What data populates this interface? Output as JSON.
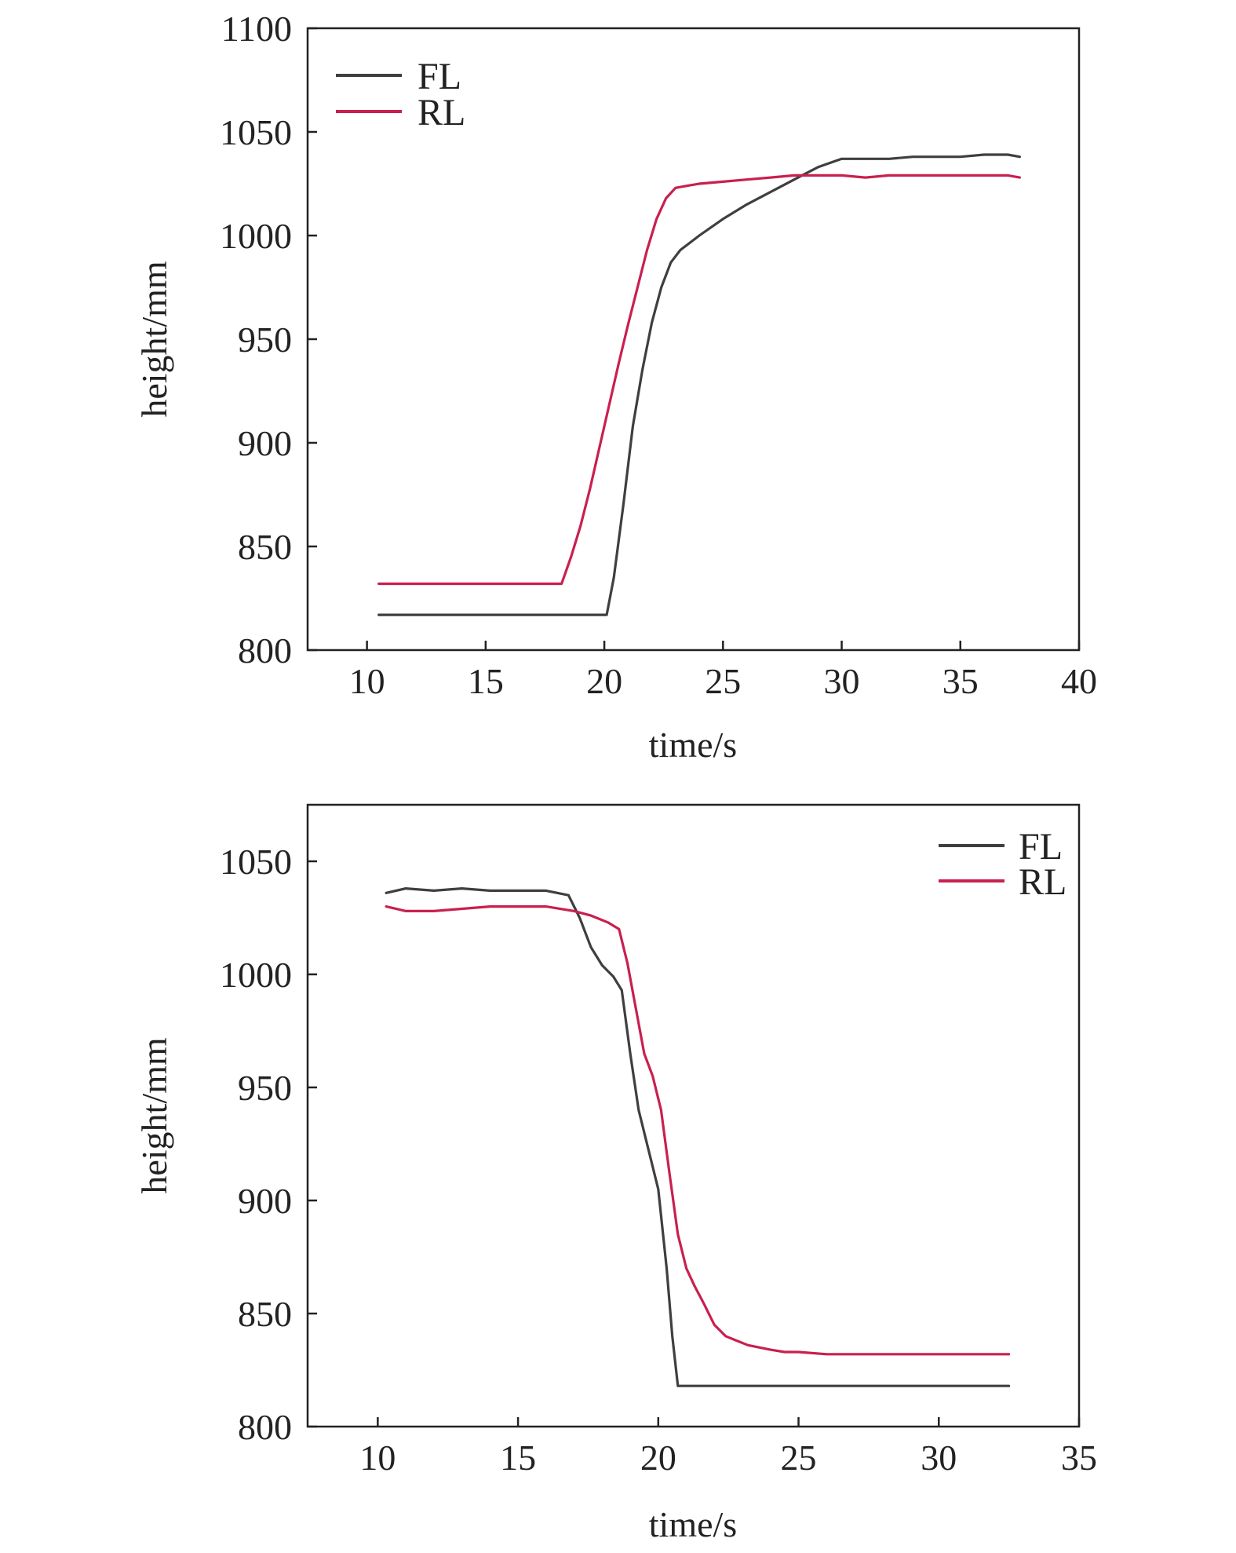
{
  "chart_data": [
    {
      "type": "line",
      "xlabel": "time/s",
      "ylabel": "height/mm",
      "xlim": [
        7.5,
        40
      ],
      "ylim": [
        800,
        1100
      ],
      "xticks": [
        10,
        15,
        20,
        25,
        30,
        35,
        40
      ],
      "yticks": [
        800,
        850,
        900,
        950,
        1000,
        1050,
        1100
      ],
      "legend_position": "top-left",
      "grid": false,
      "series": [
        {
          "name": "FL",
          "color": "#3f3f3f",
          "x": [
            10.5,
            12,
            14,
            16,
            18,
            20.1,
            20.4,
            20.8,
            21.2,
            21.6,
            22,
            22.4,
            22.8,
            23.2,
            24,
            25,
            26,
            27,
            28,
            29,
            30,
            31,
            32,
            33,
            34,
            35,
            36,
            37,
            37.5
          ],
          "y": [
            817,
            817,
            817,
            817,
            817,
            817,
            835,
            870,
            908,
            935,
            958,
            975,
            987,
            993,
            1000,
            1008,
            1015,
            1021,
            1027,
            1033,
            1037,
            1037,
            1037,
            1038,
            1038,
            1038,
            1039,
            1039,
            1038
          ]
        },
        {
          "name": "RL",
          "color": "#c8204f",
          "x": [
            10.5,
            12,
            14,
            16,
            18.2,
            18.6,
            19,
            19.4,
            19.8,
            20.2,
            20.6,
            21,
            21.4,
            21.8,
            22.2,
            22.6,
            23,
            23.5,
            24,
            25,
            26,
            27,
            28,
            29,
            30,
            31,
            32,
            33,
            34,
            35,
            36,
            37,
            37.5
          ],
          "y": [
            832,
            832,
            832,
            832,
            832,
            845,
            860,
            878,
            898,
            918,
            938,
            957,
            975,
            993,
            1008,
            1018,
            1023,
            1024,
            1025,
            1026,
            1027,
            1028,
            1029,
            1029,
            1029,
            1028,
            1029,
            1029,
            1029,
            1029,
            1029,
            1029,
            1028
          ]
        }
      ]
    },
    {
      "type": "line",
      "xlabel": "time/s",
      "ylabel": "height/mm",
      "xlim": [
        7.5,
        35
      ],
      "ylim": [
        800,
        1075
      ],
      "xticks": [
        10,
        15,
        20,
        25,
        30,
        35
      ],
      "yticks": [
        800,
        850,
        900,
        950,
        1000,
        1050
      ],
      "legend_position": "top-right",
      "grid": false,
      "series": [
        {
          "name": "FL",
          "color": "#3f3f3f",
          "x": [
            10.3,
            11,
            12,
            13,
            14,
            15,
            16,
            16.8,
            17.2,
            17.6,
            18,
            18.4,
            18.7,
            19,
            19.3,
            19.6,
            20,
            20.3,
            20.5,
            20.7,
            21,
            22,
            24,
            26,
            28,
            30,
            32,
            32.5
          ],
          "y": [
            1036,
            1038,
            1037,
            1038,
            1037,
            1037,
            1037,
            1035,
            1025,
            1012,
            1004,
            999,
            993,
            965,
            940,
            925,
            905,
            870,
            840,
            818,
            818,
            818,
            818,
            818,
            818,
            818,
            818,
            818
          ]
        },
        {
          "name": "RL",
          "color": "#c8204f",
          "x": [
            10.3,
            11,
            12,
            13,
            14,
            15,
            16,
            17,
            17.6,
            18.2,
            18.6,
            18.9,
            19.2,
            19.5,
            19.8,
            20.1,
            20.4,
            20.7,
            21,
            21.3,
            21.6,
            22,
            22.4,
            22.8,
            23.2,
            23.6,
            24,
            24.5,
            25,
            26,
            27,
            28,
            30,
            32,
            32.5
          ],
          "y": [
            1030,
            1028,
            1028,
            1029,
            1030,
            1030,
            1030,
            1028,
            1026,
            1023,
            1020,
            1005,
            985,
            965,
            955,
            940,
            912,
            885,
            870,
            862,
            855,
            845,
            840,
            838,
            836,
            835,
            834,
            833,
            833,
            832,
            832,
            832,
            832,
            832,
            832
          ]
        }
      ]
    }
  ]
}
